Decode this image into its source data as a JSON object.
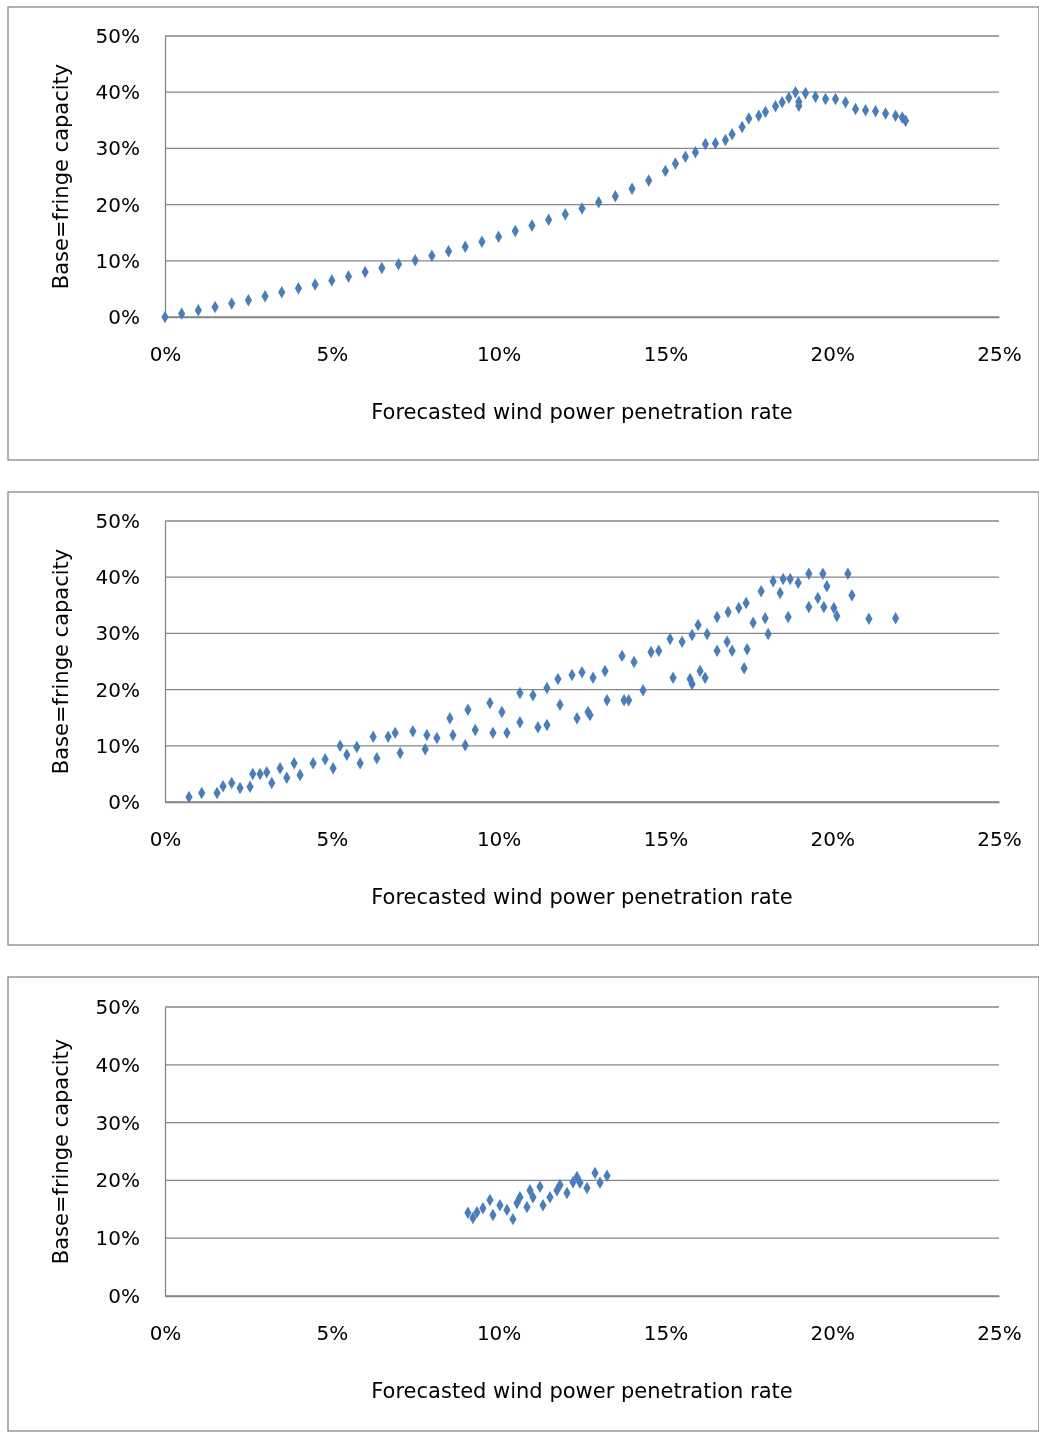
{
  "chart_data": [
    {
      "type": "scatter",
      "xlabel": "Forecasted wind power penetration rate",
      "ylabel": "Base=fringe capacity",
      "marker": "diamond",
      "grid": "y",
      "xlim": [
        0,
        25
      ],
      "xticks": [
        {
          "value": 0,
          "label": "0%"
        },
        {
          "value": 5,
          "label": "5%"
        },
        {
          "value": 10,
          "label": "10%"
        },
        {
          "value": 15,
          "label": "15%"
        },
        {
          "value": 20,
          "label": "20%"
        },
        {
          "value": 25,
          "label": "25%"
        }
      ],
      "ylim": [
        0,
        50
      ],
      "yticks": [
        {
          "value": 0,
          "label": "0%"
        },
        {
          "value": 10,
          "label": "10%"
        },
        {
          "value": 20,
          "label": "20%"
        },
        {
          "value": 30,
          "label": "30%"
        },
        {
          "value": 40,
          "label": "40%"
        },
        {
          "value": 50,
          "label": "50%"
        }
      ],
      "series": [
        {
          "color": "#4a7ebb",
          "x": [
            0,
            0.5,
            1,
            1.5,
            2,
            2.5,
            3,
            3.5,
            4,
            4.5,
            5,
            5.5,
            6,
            6.5,
            7,
            7.5,
            8,
            8.5,
            9,
            9.5,
            10,
            10.5,
            11,
            11.5,
            12,
            12.5,
            13,
            13.5,
            14,
            14.5,
            15,
            15.3,
            15.6,
            15.9,
            16.2,
            16.5,
            16.8,
            17,
            17.3,
            17.5,
            17.8,
            18,
            18.3,
            18.5,
            18.7,
            18.9,
            19,
            19.2,
            19.5,
            19.8,
            20.1,
            20.4,
            20.7,
            21,
            21.3,
            21.6,
            21.9,
            22.1,
            22.2,
            19
          ],
          "values": [
            0,
            0.6,
            1.2,
            1.8,
            2.4,
            3,
            3.7,
            4.4,
            5.1,
            5.8,
            6.5,
            7.2,
            8,
            8.7,
            9.4,
            10.1,
            10.9,
            11.7,
            12.5,
            13.4,
            14.3,
            15.3,
            16.3,
            17.3,
            18.3,
            19.3,
            20.4,
            21.5,
            22.8,
            24.3,
            26,
            27.3,
            28.5,
            29.3,
            30.8,
            30.9,
            31.5,
            32.5,
            33.8,
            35.3,
            35.8,
            36.5,
            37.5,
            38.2,
            39,
            40,
            37.6,
            39.8,
            39.2,
            38.8,
            38.8,
            38.2,
            37,
            36.8,
            36.6,
            36.2,
            35.8,
            35.5,
            34.9,
            38.3
          ]
        }
      ]
    },
    {
      "type": "scatter",
      "xlabel": "Forecasted wind power penetration rate",
      "ylabel": "Base=fringe capacity",
      "marker": "diamond",
      "grid": "y",
      "xlim": [
        0,
        25
      ],
      "xticks": [
        {
          "value": 0,
          "label": "0%"
        },
        {
          "value": 5,
          "label": "5%"
        },
        {
          "value": 10,
          "label": "10%"
        },
        {
          "value": 15,
          "label": "15%"
        },
        {
          "value": 20,
          "label": "20%"
        },
        {
          "value": 25,
          "label": "25%"
        }
      ],
      "ylim": [
        0,
        50
      ],
      "yticks": [
        {
          "value": 0,
          "label": "0%"
        },
        {
          "value": 10,
          "label": "10%"
        },
        {
          "value": 20,
          "label": "20%"
        },
        {
          "value": 30,
          "label": "30%"
        },
        {
          "value": 40,
          "label": "40%"
        },
        {
          "value": 50,
          "label": "50%"
        }
      ],
      "series": [
        {
          "color": "#4a7ebb",
          "x": [
            0.72,
            1.1,
            1.56,
            1.74,
            2,
            2.25,
            2.55,
            2.63,
            2.85,
            3.05,
            3.2,
            3.45,
            3.65,
            3.87,
            4.05,
            4.44,
            4.8,
            5.04,
            5.25,
            5.45,
            5.75,
            5.85,
            6.24,
            6.35,
            6.69,
            6.9,
            7.05,
            7.43,
            7.8,
            7.85,
            8.15,
            8.54,
            8.63,
            9,
            9.08,
            9.3,
            9.74,
            9.83,
            10.1,
            10.25,
            10.64,
            10.64,
            11.03,
            11.18,
            11.45,
            11.45,
            11.78,
            11.84,
            12.2,
            12.35,
            12.5,
            12.68,
            12.74,
            12.83,
            13.19,
            13.25,
            13.7,
            13.76,
            13.9,
            14.06,
            14.33,
            14.57,
            14.8,
            15.14,
            15.23,
            15.5,
            15.74,
            15.8,
            15.8,
            15.98,
            16.04,
            16.19,
            16.25,
            16.55,
            16.55,
            16.85,
            16.88,
            17,
            17.2,
            17.36,
            17.42,
            17.45,
            17.63,
            17.87,
            17.99,
            18.08,
            18.23,
            18.44,
            18.53,
            18.68,
            18.74,
            18.98,
            19.3,
            19.3,
            19.57,
            19.72,
            19.75,
            19.84,
            20.05,
            20.14,
            20.47,
            20.59,
            21.1,
            21.9
          ],
          "values": [
            0.9,
            1.6,
            1.6,
            2.8,
            3.4,
            2.5,
            2.7,
            5,
            5,
            5.3,
            3.4,
            6,
            4.3,
            6.9,
            4.8,
            6.9,
            7.6,
            6,
            10,
            8.4,
            9.8,
            6.9,
            11.6,
            7.8,
            11.6,
            12.3,
            8.7,
            12.6,
            9.4,
            11.9,
            11.4,
            14.9,
            11.9,
            10.1,
            16.4,
            12.8,
            17.6,
            12.3,
            16,
            12.3,
            19.4,
            14.2,
            19,
            13.3,
            20.3,
            13.7,
            21.9,
            17.3,
            22.6,
            14.9,
            23.1,
            16,
            15.5,
            22.1,
            23.3,
            18.1,
            26,
            18.1,
            18.1,
            24.9,
            19.9,
            26.7,
            26.9,
            29,
            22.1,
            28.5,
            21.9,
            21,
            29.7,
            31.5,
            23.3,
            22.1,
            29.9,
            32.9,
            26.9,
            28.5,
            33.8,
            26.9,
            34.5,
            23.8,
            35.4,
            27.2,
            31.9,
            37.5,
            32.7,
            29.9,
            39.3,
            37.2,
            39.7,
            32.9,
            39.7,
            39,
            40.6,
            34.7,
            36.3,
            40.6,
            34.7,
            38.4,
            34.5,
            33.1,
            40.6,
            36.8,
            32.6,
            32.7
          ]
        }
      ]
    },
    {
      "type": "scatter",
      "xlabel": "Forecasted wind power penetration rate",
      "ylabel": "Base=fringe capacity",
      "marker": "diamond",
      "grid": "y",
      "xlim": [
        0,
        25
      ],
      "xticks": [
        {
          "value": 0,
          "label": "0%"
        },
        {
          "value": 5,
          "label": "5%"
        },
        {
          "value": 10,
          "label": "10%"
        },
        {
          "value": 15,
          "label": "15%"
        },
        {
          "value": 20,
          "label": "20%"
        },
        {
          "value": 25,
          "label": "25%"
        }
      ],
      "ylim": [
        0,
        50
      ],
      "yticks": [
        {
          "value": 0,
          "label": "0%"
        },
        {
          "value": 10,
          "label": "10%"
        },
        {
          "value": 20,
          "label": "20%"
        },
        {
          "value": 30,
          "label": "30%"
        },
        {
          "value": 40,
          "label": "40%"
        },
        {
          "value": 50,
          "label": "50%"
        }
      ],
      "series": [
        {
          "color": "#4a7ebb",
          "x": [
            9.08,
            9.23,
            9.35,
            9.53,
            9.74,
            9.83,
            10.04,
            10.25,
            10.43,
            10.55,
            10.64,
            10.85,
            10.94,
            11.03,
            11.24,
            11.33,
            11.54,
            11.75,
            11.84,
            12.05,
            12.23,
            12.35,
            12.44,
            12.65,
            12.89,
            13.04,
            13.25
          ],
          "values": [
            14.4,
            13.5,
            14.5,
            15.2,
            16.6,
            14,
            15.7,
            14.9,
            13.3,
            16.1,
            17.1,
            15.4,
            18.3,
            17.1,
            18.9,
            15.7,
            17.1,
            18.3,
            19.2,
            17.8,
            19.7,
            20.6,
            19.6,
            18.7,
            21.3,
            19.6,
            20.8
          ]
        }
      ]
    }
  ]
}
